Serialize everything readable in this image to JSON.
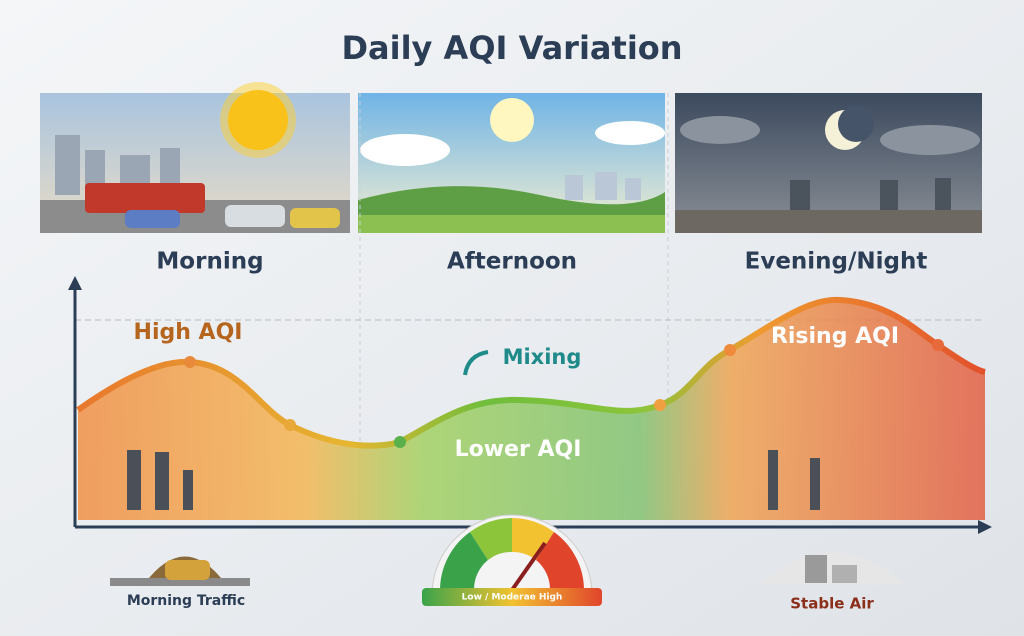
{
  "header": {
    "title": "Daily AQI Variation"
  },
  "panels": [
    {
      "label": "Morning"
    },
    {
      "label": "Afternoon"
    },
    {
      "label": "Evening/Night"
    }
  ],
  "curve_labels": {
    "high": "High AQI",
    "mixing": "Mixing",
    "lower": "Lower AQI",
    "rising": "Rising AQI"
  },
  "footer": {
    "left": "Morning Traffic",
    "gauge": "Low / Moderae High",
    "right": "Stable Air"
  }
}
